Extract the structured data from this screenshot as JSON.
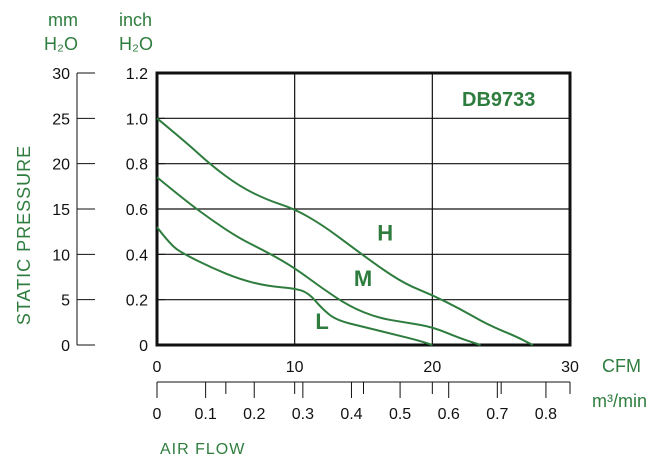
{
  "chart_data": {
    "type": "line",
    "title": "DB9733",
    "ylabel": "STATIC PRESSURE",
    "xlabel": "AIR FLOW",
    "y_units": {
      "mm": {
        "line1": "mm",
        "line2": "H₂O",
        "range": [
          0,
          30
        ],
        "ticks": [
          "0",
          "5",
          "10",
          "15",
          "20",
          "25",
          "30"
        ]
      },
      "inch": {
        "line1": "inch",
        "line2": "H₂O",
        "range": [
          0,
          1.2
        ],
        "ticks": [
          "0",
          "0.2",
          "0.4",
          "0.6",
          "0.8",
          "1.0",
          "1.2"
        ]
      }
    },
    "x_units": {
      "cfm": {
        "label": "CFM",
        "range": [
          0,
          30
        ],
        "ticks": [
          "0",
          "10",
          "20",
          "30"
        ]
      },
      "m3min": {
        "label": "m³/min",
        "ticks": [
          "0",
          "0.1",
          "0.2",
          "0.3",
          "0.4",
          "0.5",
          "0.6",
          "0.7",
          "0.8"
        ]
      }
    },
    "grid": true,
    "series": [
      {
        "name": "H",
        "x_cfm": [
          0,
          2,
          4,
          6,
          8,
          10,
          12,
          14,
          16,
          18,
          20,
          22,
          24,
          26,
          27.3
        ],
        "y_inch": [
          1.0,
          0.9,
          0.79,
          0.7,
          0.64,
          0.6,
          0.53,
          0.44,
          0.35,
          0.27,
          0.22,
          0.16,
          0.09,
          0.04,
          0.0
        ]
      },
      {
        "name": "M",
        "x_cfm": [
          0,
          2,
          4,
          6,
          8,
          10,
          12,
          14,
          16,
          18,
          20,
          22,
          23.5
        ],
        "y_inch": [
          0.74,
          0.64,
          0.55,
          0.47,
          0.41,
          0.34,
          0.25,
          0.17,
          0.12,
          0.1,
          0.08,
          0.03,
          0.0
        ]
      },
      {
        "name": "L",
        "x_cfm": [
          0,
          1,
          2,
          4,
          6,
          8,
          10,
          11,
          12,
          13,
          15,
          17,
          19,
          20
        ],
        "y_inch": [
          0.52,
          0.44,
          0.4,
          0.34,
          0.29,
          0.26,
          0.25,
          0.23,
          0.16,
          0.11,
          0.08,
          0.05,
          0.02,
          0.0
        ]
      }
    ],
    "colors": {
      "curves": "#2e7d3e",
      "text": "#2e7d3e",
      "axes": "#111111"
    }
  }
}
